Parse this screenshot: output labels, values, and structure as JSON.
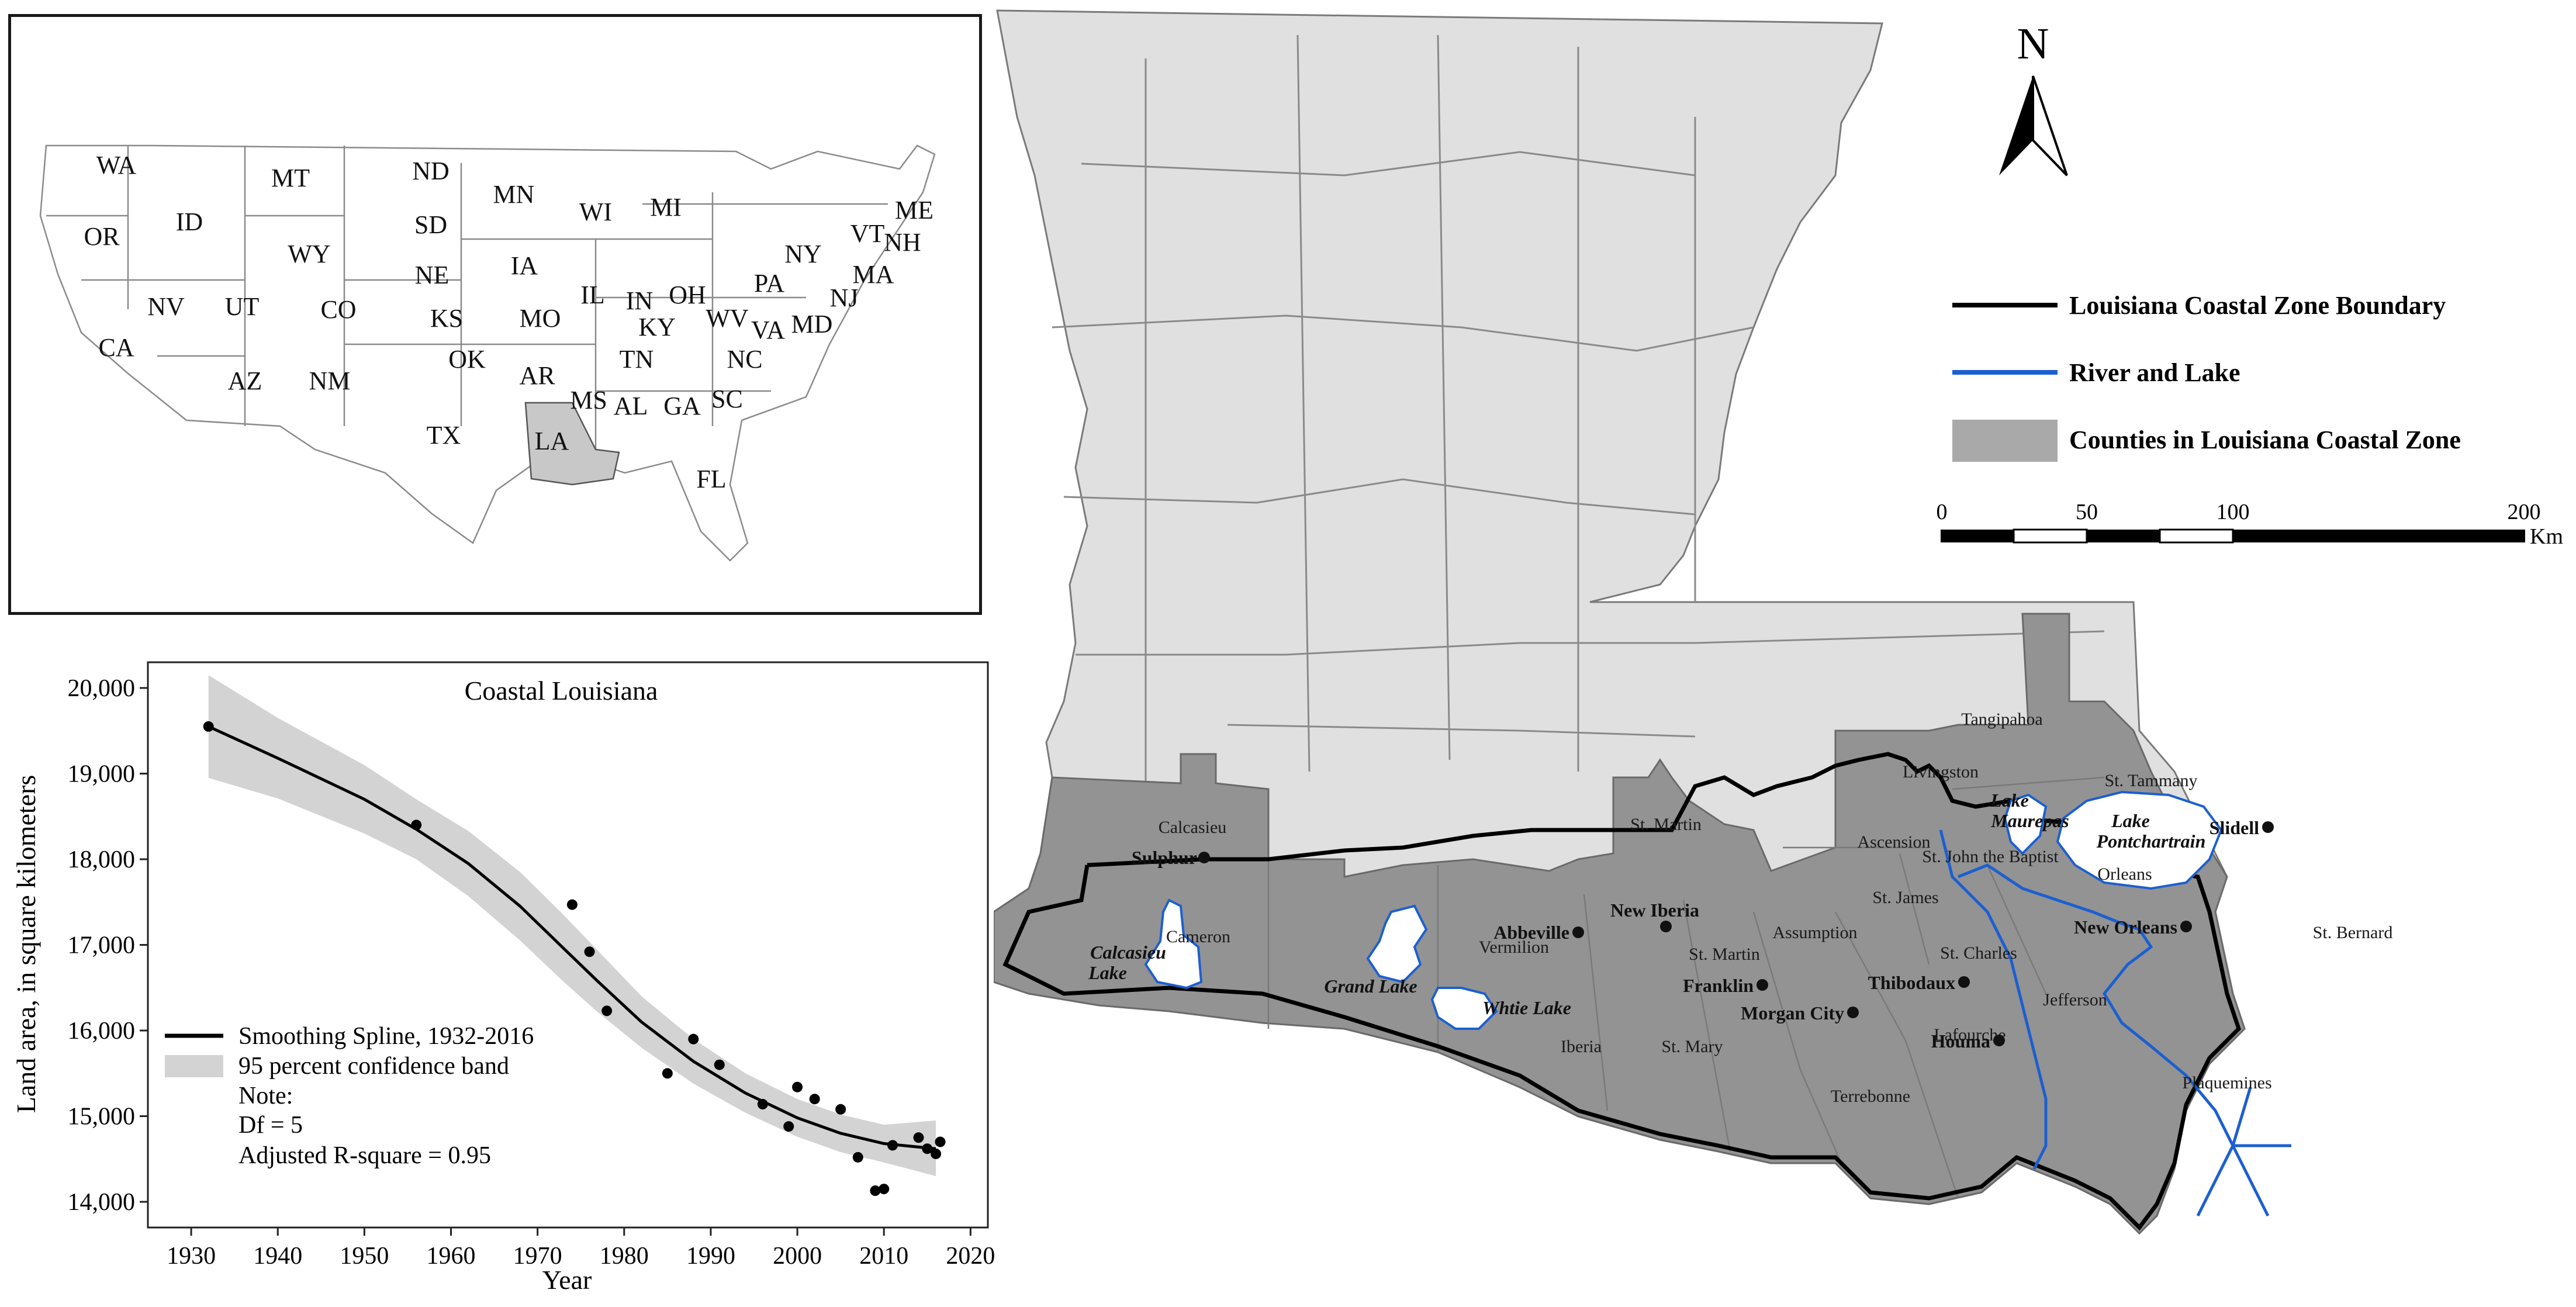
{
  "inset_map": {
    "highlight_color": "#c8c8c8",
    "state_labels": [
      "WA",
      "MT",
      "ND",
      "MN",
      "OR",
      "ID",
      "SD",
      "WI",
      "MI",
      "WY",
      "NY",
      "VT",
      "NH",
      "ME",
      "NE",
      "IA",
      "IN",
      "OH",
      "PA",
      "NJ",
      "MA",
      "NV",
      "UT",
      "CO",
      "IL",
      "KY",
      "WV",
      "VA",
      "MD",
      "CA",
      "KS",
      "MO",
      "AZ",
      "NM",
      "OK",
      "AR",
      "TN",
      "NC",
      "SC",
      "TX",
      "LA",
      "MS",
      "AL",
      "GA",
      "FL"
    ],
    "highlighted_state": "LA"
  },
  "chart_data": {
    "type": "line",
    "title": "Coastal Louisiana",
    "xlabel": "Year",
    "ylabel": "Land area, in square kilometers",
    "xlim": [
      1925,
      2022
    ],
    "ylim": [
      13700,
      20300
    ],
    "x_ticks": [
      1930,
      1940,
      1950,
      1960,
      1970,
      1980,
      1990,
      2000,
      2010,
      2020
    ],
    "y_ticks": [
      14000,
      15000,
      16000,
      17000,
      18000,
      19000,
      20000
    ],
    "y_tick_labels": [
      "14,000",
      "15,000",
      "16,000",
      "17,000",
      "18,000",
      "19,000",
      "20,000"
    ],
    "spline": {
      "name": "Smoothing Spline, 1932-2016",
      "color": "#000000",
      "x": [
        1932,
        1940,
        1950,
        1956,
        1962,
        1968,
        1973,
        1977,
        1982,
        1988,
        1994,
        2000,
        2005,
        2010,
        2016
      ],
      "y": [
        19550,
        19180,
        18700,
        18350,
        17950,
        17450,
        16960,
        16570,
        16100,
        15640,
        15270,
        14980,
        14800,
        14680,
        14620
      ]
    },
    "band": {
      "name": "95 percent confidence band",
      "color": "#d3d3d3",
      "x": [
        1932,
        1940,
        1950,
        1956,
        1962,
        1968,
        1973,
        1977,
        1982,
        1988,
        1994,
        2000,
        2005,
        2010,
        2016
      ],
      "upper": [
        20150,
        19650,
        19100,
        18700,
        18330,
        17850,
        17350,
        16930,
        16400,
        15900,
        15500,
        15200,
        15020,
        14900,
        14950
      ],
      "lower": [
        18950,
        18710,
        18300,
        18000,
        17570,
        17050,
        16570,
        16210,
        15800,
        15380,
        15040,
        14760,
        14580,
        14460,
        14300
      ]
    },
    "points": {
      "x": [
        1932,
        1956,
        1974,
        1976,
        1978,
        1985,
        1988,
        1991,
        1996,
        1999,
        2000,
        2002,
        2005,
        2007,
        2009,
        2010,
        2011,
        2014,
        2015,
        2016,
        2016.5
      ],
      "y": [
        19550,
        18400,
        17470,
        16920,
        16230,
        15500,
        15900,
        15600,
        15140,
        14880,
        15340,
        15200,
        15080,
        14520,
        14130,
        14150,
        14660,
        14750,
        14620,
        14560,
        14700
      ]
    },
    "legend": {
      "position": "bottom-left",
      "note_lines": [
        "Note:",
        "Df = 5",
        "Adjusted R-square = 0.95"
      ]
    }
  },
  "main_map": {
    "north_label": "N",
    "colors": {
      "background_parish": "#e0e0e0",
      "coastal_parish": "#939393",
      "water": "#ffffff",
      "river": "#1c5fd0",
      "boundary": "#000000"
    },
    "legend": [
      {
        "label": "Louisiana Coastal Zone Boundary",
        "symbol": "line",
        "color": "#000000"
      },
      {
        "label": "River and Lake",
        "symbol": "line",
        "color": "#1c5fd0"
      },
      {
        "label": "Counties in Louisiana Coastal Zone",
        "symbol": "patch",
        "color": "#a9a9a9"
      }
    ],
    "scale_bar": {
      "ticks": [
        "0",
        "50",
        "100",
        "200"
      ],
      "unit": "Km"
    },
    "parish_labels": [
      "Tangipahoa",
      "Livingston",
      "St. Tammany",
      "Calcasieu",
      "St. Martin",
      "Ascension",
      "St. John the Baptist",
      "Orleans",
      "Cameron",
      "Vermilion",
      "St. James",
      "Assumption",
      "St. Charles",
      "St. Bernard",
      "St. Martin",
      "Jefferson",
      "Iberia",
      "St. Mary",
      "Lafourche",
      "Terrebonne",
      "Plaquemines"
    ],
    "city_labels": [
      "Sulphur",
      "New Iberia",
      "Abbeville",
      "Franklin",
      "Morgan City",
      "Thibodaux",
      "Houma",
      "New Orleans",
      "Slidell"
    ],
    "lake_labels": [
      {
        "lines": [
          "Calcasieu",
          "Lake"
        ]
      },
      {
        "lines": [
          "Grand Lake"
        ]
      },
      {
        "lines": [
          "Whtie Lake"
        ]
      },
      {
        "lines": [
          "Lake",
          "Maurepas"
        ]
      },
      {
        "lines": [
          "Lake",
          "Pontchartrain"
        ]
      }
    ]
  }
}
